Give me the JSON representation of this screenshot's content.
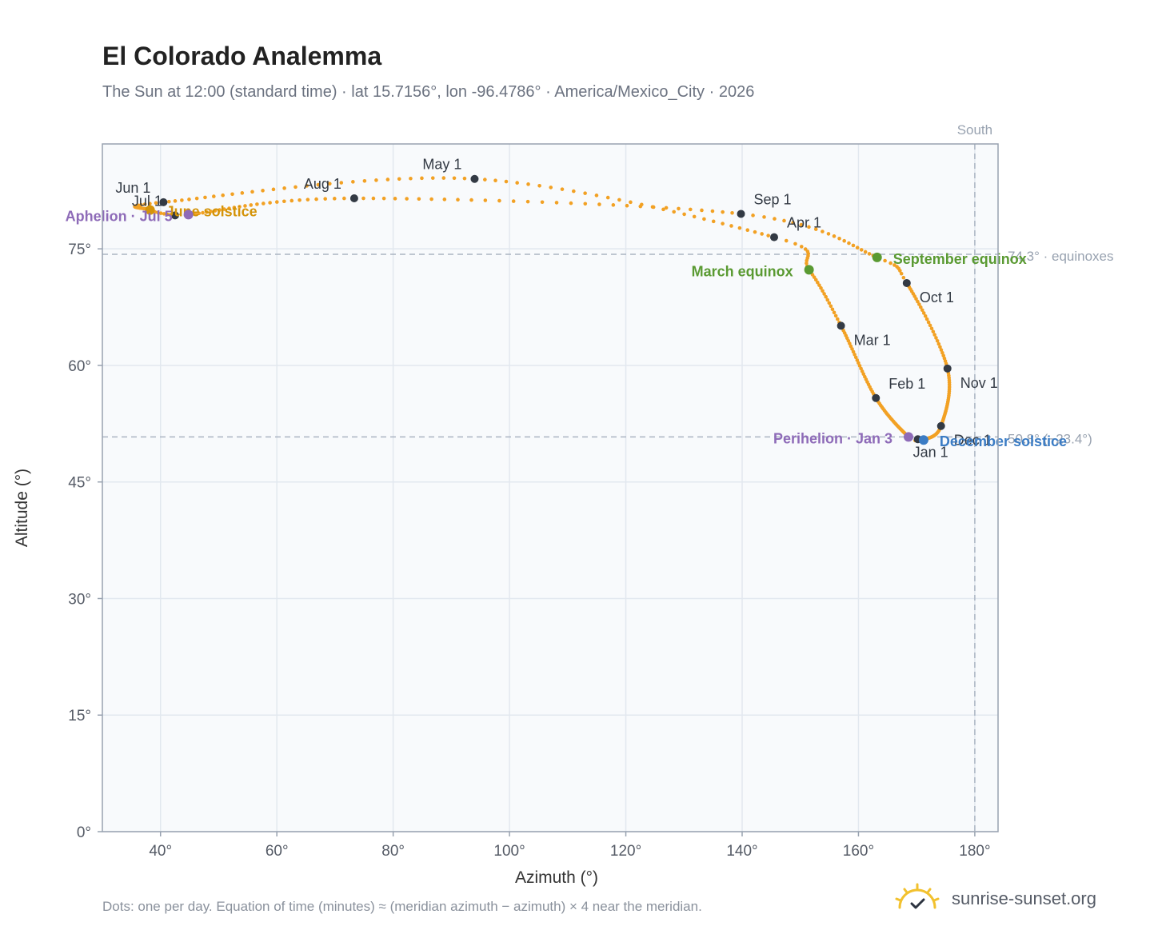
{
  "header": {
    "title": "El Colorado Analemma",
    "subtitle": "The Sun at 12:00 (standard time) · lat 15.7156°, lon -96.4786° · America/Mexico_City · 2026"
  },
  "footer": {
    "note": "Dots: one per day. Equation of time (minutes) ≈ (meridian azimuth − azimuth) × 4 near the meridian.",
    "brand": "sunrise-sunset.org"
  },
  "colors": {
    "curve": "#f2a124",
    "month_marker": "#333a44",
    "equinox": "#5a9a32",
    "solstice_summer": "#d4940a",
    "solstice_winter": "#3b7cc4",
    "apsis": "#8e6bb8",
    "reference_line": "#aab4c2",
    "plot_bg": "#f8fafc",
    "grid": "#e2e8ef"
  },
  "chart_data": {
    "type": "scatter",
    "xlabel": "Azimuth (°)",
    "ylabel": "Altitude (°)",
    "xlim": [
      30,
      184
    ],
    "ylim": [
      0,
      88.5
    ],
    "x_ticks": [
      40,
      60,
      80,
      100,
      120,
      140,
      160,
      180
    ],
    "x_tick_labels": [
      "40°",
      "60°",
      "80°",
      "100°",
      "120°",
      "140°",
      "160°",
      "180°"
    ],
    "y_ticks": [
      0,
      15,
      30,
      45,
      60,
      75
    ],
    "y_tick_labels": [
      "0°",
      "15°",
      "30°",
      "45°",
      "60°",
      "75°"
    ],
    "grid": true,
    "meridian": {
      "azimuth": 180,
      "label": "South"
    },
    "reference_lines": [
      {
        "altitude": 74.3,
        "label": "74.3° · equinoxes"
      },
      {
        "altitude": 50.8,
        "label": "50.8° (−23.4°)"
      }
    ],
    "series_anchors": [
      {
        "date": "Jan 1",
        "az": 170.2,
        "alt": 50.5
      },
      {
        "date": "Jan 3",
        "az": 168.6,
        "alt": 50.8
      },
      {
        "date": "Feb 1",
        "az": 163.0,
        "alt": 55.8
      },
      {
        "date": "Mar 1",
        "az": 157.0,
        "alt": 65.1
      },
      {
        "date": "Mar 20",
        "az": 151.5,
        "alt": 72.3
      },
      {
        "date": "Apr 1",
        "az": 145.5,
        "alt": 76.5
      },
      {
        "date": "May 1",
        "az": 94.0,
        "alt": 84.0
      },
      {
        "date": "Jun 1",
        "az": 40.5,
        "alt": 81.0
      },
      {
        "date": "Jun 21",
        "az": 38.2,
        "alt": 80.0
      },
      {
        "date": "Jul 1",
        "az": 42.5,
        "alt": 79.3
      },
      {
        "date": "Jul 5",
        "az": 44.8,
        "alt": 79.4
      },
      {
        "date": "Aug 1",
        "az": 73.3,
        "alt": 81.5
      },
      {
        "date": "Sep 1",
        "az": 139.8,
        "alt": 79.5
      },
      {
        "date": "Sep 22",
        "az": 163.2,
        "alt": 73.9
      },
      {
        "date": "Oct 1",
        "az": 168.3,
        "alt": 70.6
      },
      {
        "date": "Nov 1",
        "az": 175.3,
        "alt": 59.6
      },
      {
        "date": "Dec 1",
        "az": 174.2,
        "alt": 52.2
      },
      {
        "date": "Dec 21",
        "az": 171.2,
        "alt": 50.4
      },
      {
        "date": "Dec 31",
        "az": 170.2,
        "alt": 50.5
      }
    ],
    "month_markers": [
      {
        "label": "Jan 1",
        "az": 170.2,
        "alt": 50.5,
        "pos": "below"
      },
      {
        "label": "Feb 1",
        "az": 163.0,
        "alt": 55.8,
        "pos": "above-right"
      },
      {
        "label": "Mar 1",
        "az": 157.0,
        "alt": 65.1,
        "pos": "below-right"
      },
      {
        "label": "Apr 1",
        "az": 145.5,
        "alt": 76.5,
        "pos": "above-right"
      },
      {
        "label": "May 1",
        "az": 94.0,
        "alt": 84.0,
        "pos": "above-left"
      },
      {
        "label": "Jun 1",
        "az": 40.5,
        "alt": 81.0,
        "pos": "above-left"
      },
      {
        "label": "Jul 1",
        "az": 42.5,
        "alt": 79.3,
        "pos": "above-left"
      },
      {
        "label": "Aug 1",
        "az": 73.3,
        "alt": 81.5,
        "pos": "above-left"
      },
      {
        "label": "Sep 1",
        "az": 139.8,
        "alt": 79.5,
        "pos": "above-right"
      },
      {
        "label": "Oct 1",
        "az": 168.3,
        "alt": 70.6,
        "pos": "below-right"
      },
      {
        "label": "Nov 1",
        "az": 175.3,
        "alt": 59.6,
        "pos": "below-right"
      },
      {
        "label": "Dec 1",
        "az": 174.2,
        "alt": 52.2,
        "pos": "below-right"
      }
    ],
    "events": [
      {
        "label": "March equinox",
        "az": 151.5,
        "alt": 72.3,
        "kind": "equinox",
        "pos": "left"
      },
      {
        "label": "September equinox",
        "az": 163.2,
        "alt": 73.9,
        "kind": "equinox",
        "pos": "right"
      },
      {
        "label": "June solstice",
        "az": 38.2,
        "alt": 80.0,
        "kind": "solstice_summer",
        "pos": "right"
      },
      {
        "label": "December solstice",
        "az": 171.2,
        "alt": 50.4,
        "kind": "solstice_winter",
        "pos": "right"
      },
      {
        "label": "Aphelion · Jul 5",
        "az": 44.8,
        "alt": 79.4,
        "kind": "apsis",
        "pos": "left"
      },
      {
        "label": "Perihelion · Jan 3",
        "az": 168.6,
        "alt": 50.8,
        "kind": "apsis",
        "pos": "left"
      }
    ]
  }
}
